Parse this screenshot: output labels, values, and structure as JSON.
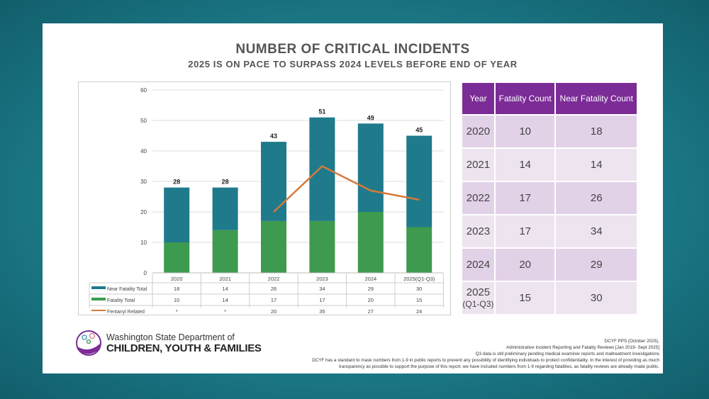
{
  "header": {
    "title": "NUMBER OF CRITICAL INCIDENTS",
    "subtitle": "2025 IS ON PACE TO SURPASS 2024 LEVELS BEFORE END OF YEAR"
  },
  "colors": {
    "near_fatality": "#1f7a8c",
    "fatality": "#3e9a4e",
    "fentanyl": "#d47a3a",
    "table_header": "#7b2c96"
  },
  "chart_data": {
    "type": "bar",
    "stacked": true,
    "categories": [
      "2020",
      "2021",
      "2022",
      "2023",
      "2024",
      "2025(Q1-Q3)"
    ],
    "ylim": [
      0,
      60
    ],
    "yticks": [
      "0",
      "10",
      "20",
      "30",
      "40",
      "50",
      "60"
    ],
    "grid": true,
    "totals": [
      "28",
      "28",
      "43",
      "51",
      "49",
      "45"
    ],
    "series": [
      {
        "name": "Near Fatality Total",
        "values": [
          18,
          14,
          26,
          34,
          29,
          30
        ],
        "labels": [
          "18",
          "14",
          "26",
          "34",
          "29",
          "30"
        ]
      },
      {
        "name": "Fatality Total",
        "values": [
          10,
          14,
          17,
          17,
          20,
          15
        ],
        "labels": [
          "10",
          "14",
          "17",
          "17",
          "20",
          "15"
        ]
      },
      {
        "name": "Fentanyl Related",
        "type": "line",
        "values": [
          null,
          null,
          20,
          35,
          27,
          24
        ],
        "labels": [
          "*",
          "*",
          "20",
          "35",
          "27",
          "24"
        ]
      }
    ],
    "legend": "data-table-bottom"
  },
  "table": {
    "headers": [
      "Year",
      "Fatality Count",
      "Near Fatality Count"
    ],
    "rows": [
      {
        "year": "2020",
        "sub": "",
        "fatality": "10",
        "near": "18"
      },
      {
        "year": "2021",
        "sub": "",
        "fatality": "14",
        "near": "14"
      },
      {
        "year": "2022",
        "sub": "",
        "fatality": "17",
        "near": "26"
      },
      {
        "year": "2023",
        "sub": "",
        "fatality": "17",
        "near": "34"
      },
      {
        "year": "2024",
        "sub": "",
        "fatality": "20",
        "near": "29"
      },
      {
        "year": "2025",
        "sub": "(Q1-Q3)",
        "fatality": "15",
        "near": "30"
      }
    ]
  },
  "logo": {
    "line1": "Washington State Department of",
    "line2": "CHILDREN, YOUTH & FAMILIES"
  },
  "source": [
    "DCYF PPS (October 2025),",
    "Administrative Incident Reporting and Fatality Reviews [Jan 2019- Sept 2025]",
    "Q3 data is still preliminary pending medical examiner reports and maltreatment investigations",
    "DCYF has a standard to mask numbers from 1-9 in public reports to prevent any possibility of identifying individuals to protect confidentiality. In the interest of providing as much",
    "transparency as possible to support the purpose of this report, we have included numbers from 1-9 regarding fatalities, as fatality reviews are already made public."
  ]
}
